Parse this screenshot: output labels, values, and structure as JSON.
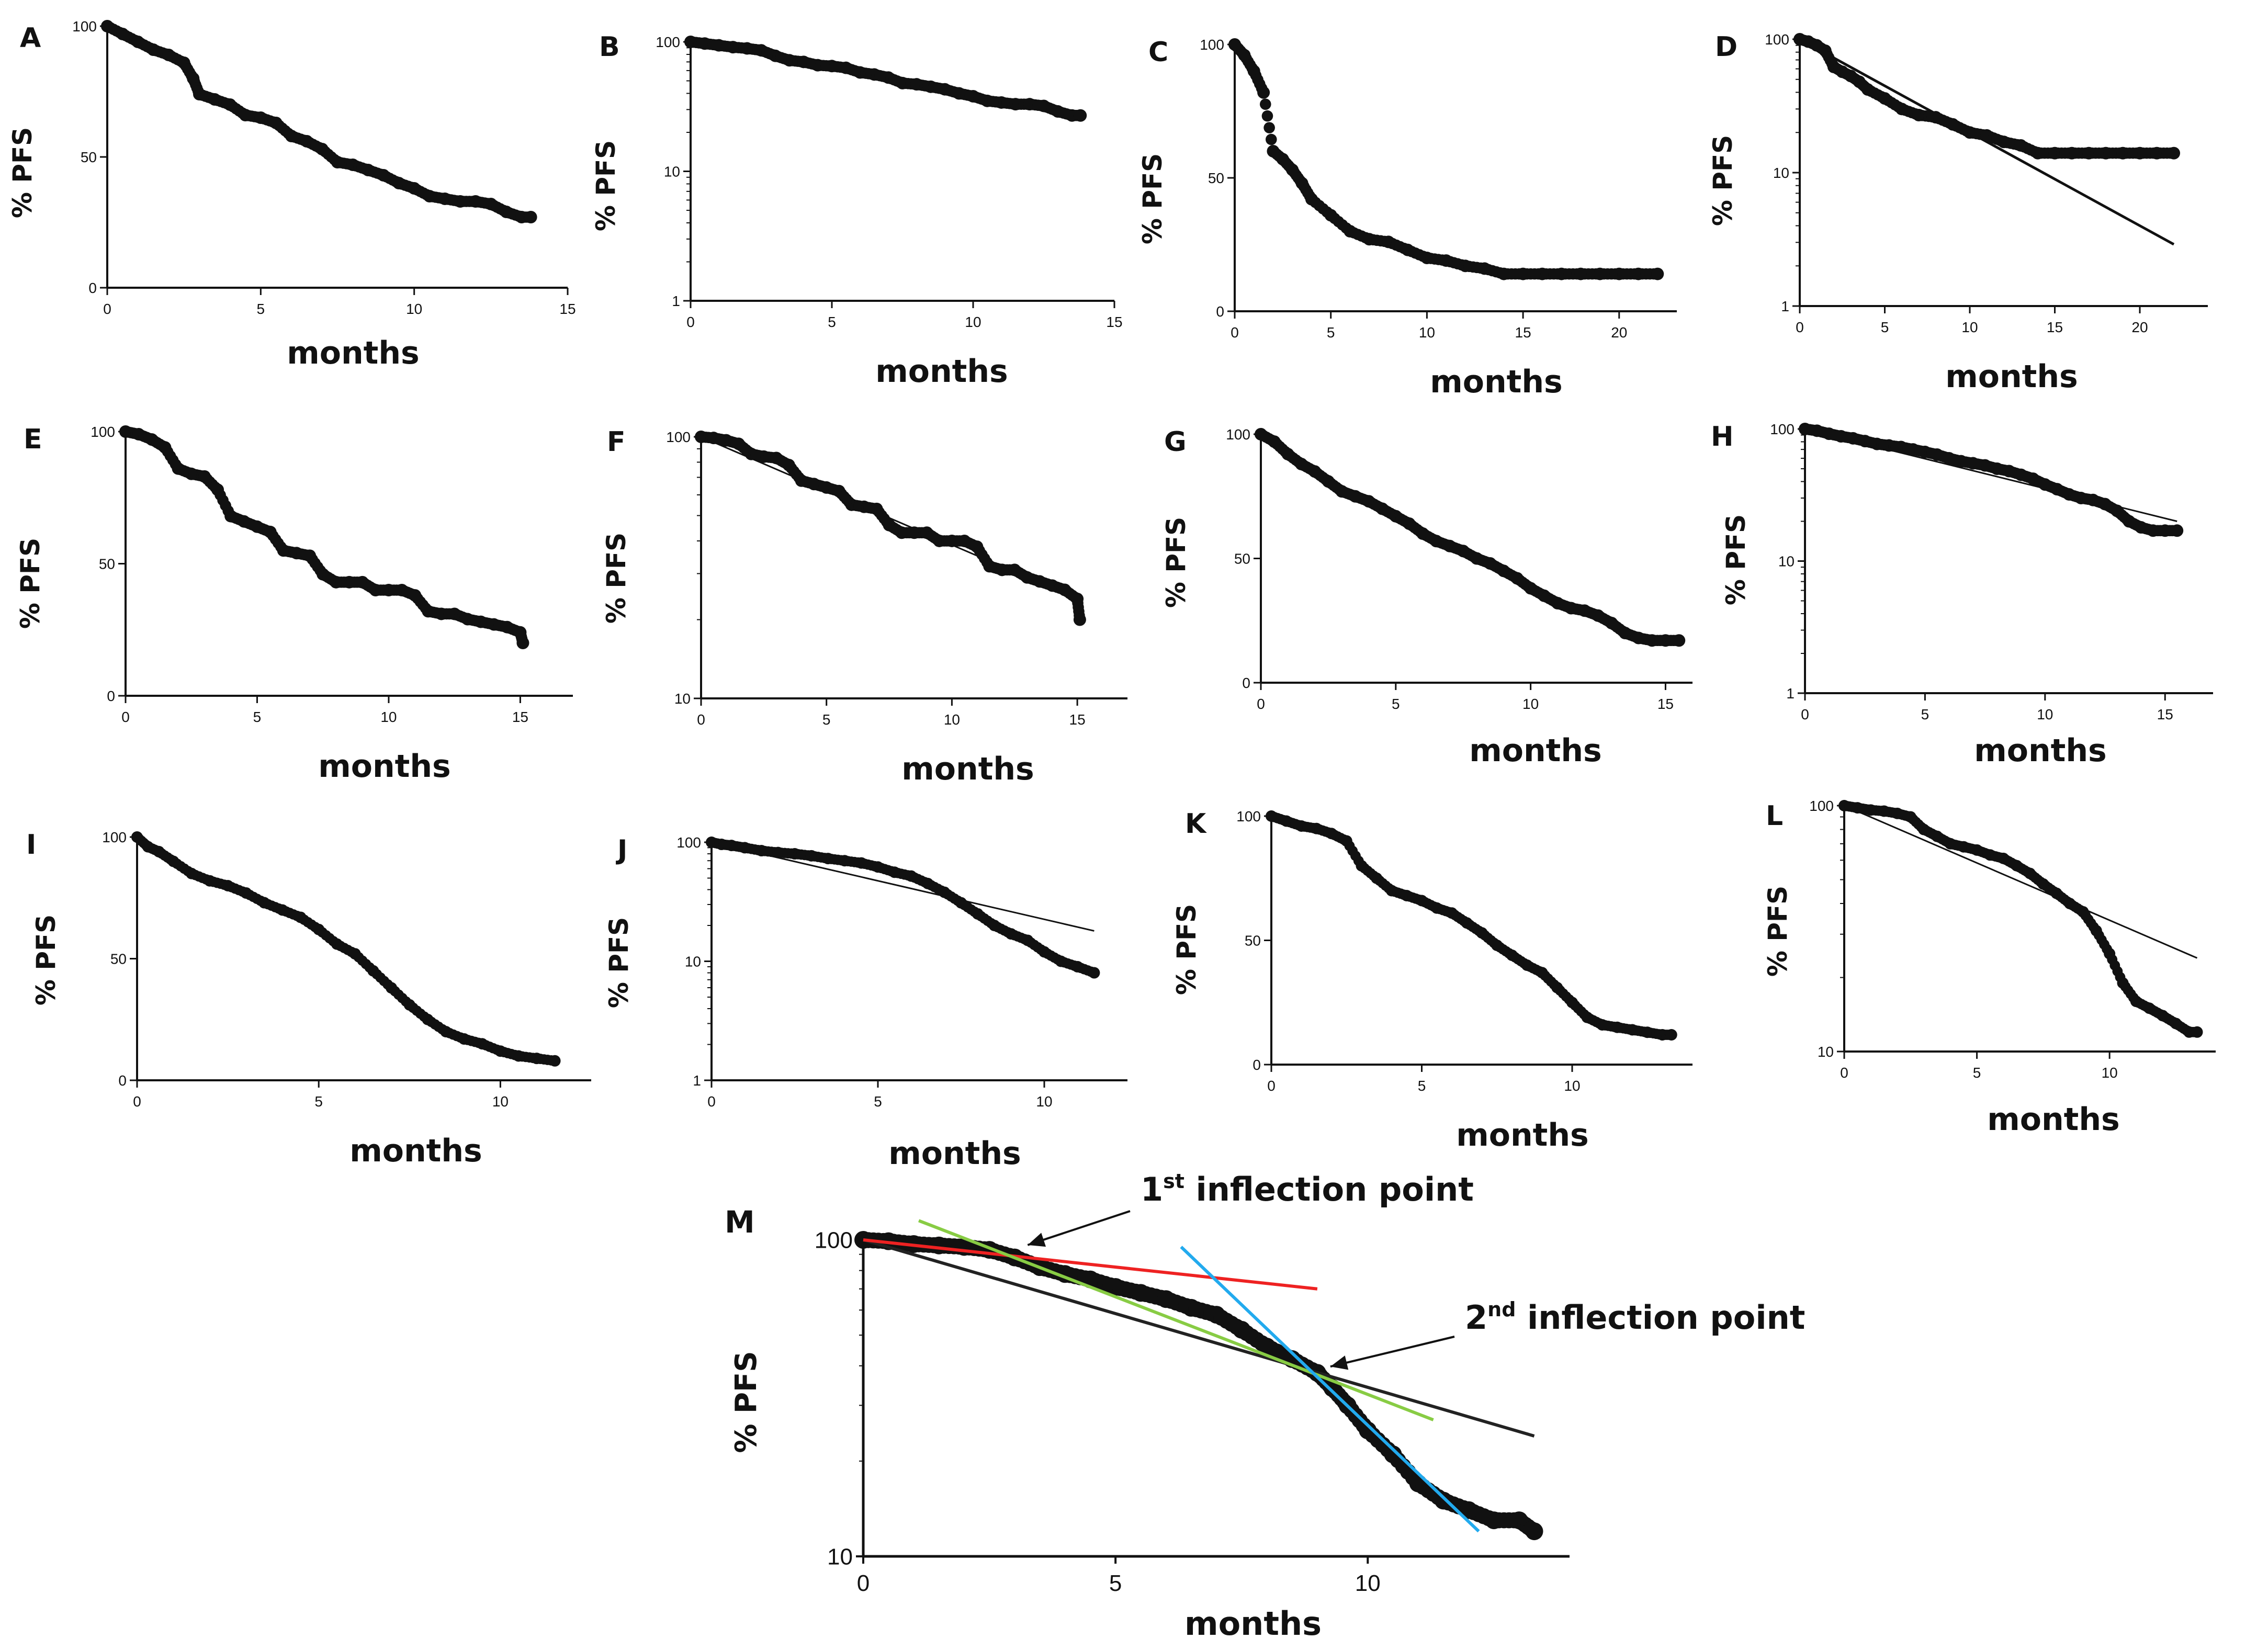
{
  "figure": {
    "panels_note": "Kaplan-Meier progression-free survival curves, linear and semi-log views"
  },
  "chart_data": [
    {
      "panel": "A",
      "type": "scatter",
      "scale": "linear",
      "ylabel": "% PFS",
      "xlabel": "months",
      "xlim": [
        0,
        15
      ],
      "xticks": [
        "0",
        "5",
        "10",
        "15"
      ],
      "ylim": [
        0,
        100
      ],
      "yticks": [
        "0",
        "50",
        "100"
      ],
      "x": [
        0,
        0.5,
        1,
        1.5,
        2,
        2.5,
        2.8,
        3,
        3.5,
        4,
        4.5,
        5,
        5.5,
        6,
        6.5,
        7,
        7.5,
        8,
        8.5,
        9,
        9.5,
        10,
        10.5,
        11,
        11.5,
        12,
        12.5,
        13,
        13.5,
        13.8
      ],
      "y": [
        100,
        97,
        94,
        91,
        89,
        86,
        80,
        74,
        72,
        70,
        66,
        65,
        63,
        58,
        56,
        53,
        48,
        47,
        45,
        43,
        40,
        38,
        35,
        34,
        33,
        33,
        32,
        29,
        27,
        27
      ]
    },
    {
      "panel": "B",
      "type": "scatter",
      "scale": "log",
      "ylabel": "% PFS",
      "xlabel": "months",
      "xlim": [
        0,
        15
      ],
      "xticks": [
        "0",
        "5",
        "10",
        "15"
      ],
      "ylim": [
        1,
        100
      ],
      "yticks": [
        "1",
        "10",
        "100"
      ],
      "x": [
        0,
        0.5,
        1,
        1.5,
        2,
        2.5,
        3,
        3.5,
        4,
        4.5,
        5,
        5.5,
        6,
        6.5,
        7,
        7.5,
        8,
        8.5,
        9,
        9.5,
        10,
        10.5,
        11,
        11.5,
        12,
        12.5,
        13,
        13.5,
        13.8
      ],
      "y": [
        100,
        97,
        94,
        91,
        89,
        86,
        78,
        72,
        70,
        66,
        65,
        63,
        58,
        56,
        53,
        48,
        47,
        45,
        43,
        40,
        38,
        35,
        34,
        33,
        33,
        32,
        29,
        27,
        27
      ]
    },
    {
      "panel": "C",
      "type": "scatter",
      "scale": "linear",
      "ylabel": "% PFS",
      "xlabel": "months",
      "xlim": [
        0,
        23
      ],
      "xticks": [
        "0",
        "5",
        "10",
        "15",
        "20"
      ],
      "ylim": [
        0,
        100
      ],
      "yticks": [
        "0",
        "50",
        "100"
      ],
      "x": [
        0,
        0.5,
        1,
        1.5,
        2,
        2.5,
        3,
        3.5,
        4,
        5,
        6,
        7,
        8,
        9,
        10,
        11,
        12,
        13,
        14,
        15,
        16,
        17,
        18,
        19,
        20,
        21,
        22
      ],
      "y": [
        100,
        96,
        90,
        82,
        60,
        57,
        53,
        48,
        42,
        36,
        30,
        27,
        26,
        23,
        20,
        19,
        17,
        16,
        14,
        14,
        14,
        14,
        14,
        14,
        14,
        14,
        14
      ]
    },
    {
      "panel": "D",
      "type": "scatter",
      "scale": "log",
      "ylabel": "% PFS",
      "xlabel": "months",
      "xlim": [
        0,
        24
      ],
      "xticks": [
        "0",
        "5",
        "10",
        "15",
        "20"
      ],
      "ylim": [
        1,
        100
      ],
      "yticks": [
        "1",
        "10",
        "100"
      ],
      "x": [
        0,
        0.5,
        1,
        1.5,
        2,
        2.5,
        3,
        3.5,
        4,
        5,
        6,
        7,
        8,
        9,
        10,
        11,
        12,
        13,
        14,
        15,
        16,
        17,
        18,
        19,
        20,
        21,
        22
      ],
      "y": [
        100,
        96,
        90,
        82,
        62,
        57,
        53,
        48,
        42,
        36,
        30,
        27,
        26,
        23,
        20,
        19,
        17,
        16,
        14,
        14,
        14,
        14,
        14,
        14,
        14,
        14,
        14
      ],
      "fit": {
        "x": [
          0,
          22
        ],
        "y": [
          100,
          2.9
        ]
      }
    },
    {
      "panel": "E",
      "type": "scatter",
      "scale": "linear",
      "ylabel": "% PFS",
      "xlabel": "months",
      "xlim": [
        0,
        17
      ],
      "xticks": [
        "0",
        "5",
        "10",
        "15"
      ],
      "ylim": [
        0,
        100
      ],
      "yticks": [
        "0",
        "50",
        "100"
      ],
      "x": [
        0,
        0.5,
        1,
        1.5,
        2,
        2.5,
        3,
        3.5,
        4,
        4.5,
        5,
        5.5,
        6,
        6.5,
        7,
        7.5,
        8,
        8.5,
        9,
        9.5,
        10,
        10.5,
        11,
        11.5,
        12,
        12.5,
        13,
        13.5,
        14,
        14.5,
        15,
        15.1
      ],
      "y": [
        100,
        99,
        97,
        94,
        86,
        84,
        83,
        78,
        68,
        66,
        64,
        62,
        55,
        54,
        53,
        46,
        43,
        43,
        43,
        40,
        40,
        40,
        38,
        32,
        31,
        31,
        29,
        28,
        27,
        26,
        24,
        20
      ]
    },
    {
      "panel": "F",
      "type": "scatter",
      "scale": "log",
      "ylabel": "% PFS",
      "xlabel": "months",
      "xlim": [
        0,
        17
      ],
      "xticks": [
        "0",
        "5",
        "10",
        "15"
      ],
      "ylim": [
        10,
        100
      ],
      "yticks": [
        "10",
        "100"
      ],
      "x": [
        0,
        0.5,
        1,
        1.5,
        2,
        2.5,
        3,
        3.5,
        4,
        4.5,
        5,
        5.5,
        6,
        6.5,
        7,
        7.5,
        8,
        8.5,
        9,
        9.5,
        10,
        10.5,
        11,
        11.5,
        12,
        12.5,
        13,
        13.5,
        14,
        14.5,
        15,
        15.1
      ],
      "y": [
        100,
        99,
        97,
        94,
        86,
        84,
        83,
        78,
        68,
        66,
        64,
        62,
        55,
        54,
        53,
        46,
        43,
        43,
        43,
        40,
        40,
        40,
        38,
        32,
        31,
        31,
        29,
        28,
        27,
        26,
        24,
        20
      ],
      "fit": {
        "x": [
          0,
          15
        ],
        "y": [
          100,
          24
        ]
      }
    },
    {
      "panel": "G",
      "type": "scatter",
      "scale": "linear",
      "ylabel": "% PFS",
      "xlabel": "months",
      "xlim": [
        0,
        16
      ],
      "xticks": [
        "0",
        "5",
        "10",
        "15"
      ],
      "ylim": [
        0,
        100
      ],
      "yticks": [
        "0",
        "50",
        "100"
      ],
      "x": [
        0,
        0.5,
        1,
        1.5,
        2,
        2.5,
        3,
        3.5,
        4,
        4.5,
        5,
        5.5,
        6,
        6.5,
        7,
        7.5,
        8,
        8.5,
        9,
        9.5,
        10,
        10.5,
        11,
        11.5,
        12,
        12.5,
        13,
        13.5,
        14,
        14.5,
        15,
        15.5
      ],
      "y": [
        100,
        97,
        92,
        88,
        85,
        81,
        77,
        75,
        73,
        70,
        67,
        64,
        60,
        57,
        55,
        53,
        50,
        48,
        45,
        42,
        38,
        35,
        32,
        30,
        29,
        27,
        24,
        20,
        18,
        17,
        17,
        17
      ]
    },
    {
      "panel": "H",
      "type": "scatter",
      "scale": "log",
      "ylabel": "% PFS",
      "xlabel": "months",
      "xlim": [
        0,
        17
      ],
      "xticks": [
        "0",
        "5",
        "10",
        "15"
      ],
      "ylim": [
        1,
        100
      ],
      "yticks": [
        "1",
        "10",
        "100"
      ],
      "x": [
        0,
        0.5,
        1,
        1.5,
        2,
        2.5,
        3,
        3.5,
        4,
        4.5,
        5,
        5.5,
        6,
        6.5,
        7,
        7.5,
        8,
        8.5,
        9,
        9.5,
        10,
        10.5,
        11,
        11.5,
        12,
        12.5,
        13,
        13.5,
        14,
        14.5,
        15,
        15.5
      ],
      "y": [
        100,
        97,
        92,
        88,
        85,
        81,
        77,
        75,
        73,
        70,
        67,
        64,
        60,
        57,
        55,
        53,
        50,
        48,
        45,
        42,
        38,
        35,
        32,
        30,
        29,
        27,
        24,
        20,
        18,
        17,
        17,
        17
      ],
      "fit": {
        "x": [
          0,
          15.5
        ],
        "y": [
          100,
          20
        ]
      }
    },
    {
      "panel": "I",
      "type": "scatter",
      "scale": "linear",
      "ylabel": "% PFS",
      "xlabel": "months",
      "xlim": [
        0,
        12.5
      ],
      "xticks": [
        "0",
        "5",
        "10"
      ],
      "ylim": [
        0,
        100
      ],
      "yticks": [
        "0",
        "50",
        "100"
      ],
      "x": [
        0,
        0.3,
        0.6,
        1,
        1.5,
        2,
        2.5,
        3,
        3.5,
        4,
        4.5,
        5,
        5.5,
        6,
        6.5,
        7,
        7.5,
        8,
        8.5,
        9,
        9.5,
        10,
        10.5,
        11,
        11.5
      ],
      "y": [
        100,
        96,
        94,
        90,
        85,
        82,
        80,
        77,
        73,
        70,
        67,
        62,
        56,
        52,
        45,
        38,
        31,
        25,
        20,
        17,
        15,
        12,
        10,
        9,
        8
      ]
    },
    {
      "panel": "J",
      "type": "scatter",
      "scale": "log",
      "ylabel": "% PFS",
      "xlabel": "months",
      "xlim": [
        0,
        12.5
      ],
      "xticks": [
        "0",
        "5",
        "10"
      ],
      "ylim": [
        1,
        100
      ],
      "yticks": [
        "1",
        "10",
        "100"
      ],
      "x": [
        0,
        0.3,
        0.6,
        1,
        1.5,
        2,
        2.5,
        3,
        3.5,
        4,
        4.5,
        5,
        5.5,
        6,
        6.5,
        7,
        7.5,
        8,
        8.5,
        9,
        9.5,
        10,
        10.5,
        11,
        11.5
      ],
      "y": [
        100,
        96,
        94,
        90,
        85,
        82,
        80,
        77,
        73,
        70,
        67,
        62,
        56,
        52,
        45,
        38,
        31,
        25,
        20,
        17,
        15,
        12,
        10,
        9,
        8
      ],
      "fit": {
        "x": [
          0,
          11.5
        ],
        "y": [
          100,
          18
        ]
      }
    },
    {
      "panel": "K",
      "type": "scatter",
      "scale": "linear",
      "ylabel": "% PFS",
      "xlabel": "months",
      "xlim": [
        0,
        14
      ],
      "xticks": [
        "0",
        "5",
        "10"
      ],
      "ylim": [
        0,
        100
      ],
      "yticks": [
        "0",
        "50",
        "100"
      ],
      "x": [
        0,
        0.5,
        1,
        1.5,
        2,
        2.5,
        3,
        3.5,
        4,
        4.5,
        5,
        5.5,
        6,
        6.5,
        7,
        7.5,
        8,
        8.5,
        9,
        9.5,
        10,
        10.5,
        11,
        11.5,
        12,
        12.5,
        13,
        13.3
      ],
      "y": [
        100,
        98,
        96,
        95,
        93,
        90,
        80,
        75,
        70,
        68,
        66,
        63,
        61,
        57,
        53,
        48,
        44,
        40,
        37,
        31,
        25,
        19,
        16,
        15,
        14,
        13,
        12,
        12
      ]
    },
    {
      "panel": "L",
      "type": "scatter",
      "scale": "log",
      "ylabel": "% PFS",
      "xlabel": "months",
      "xlim": [
        0,
        14
      ],
      "xticks": [
        "0",
        "5",
        "10"
      ],
      "ylim": [
        10,
        100
      ],
      "yticks": [
        "10",
        "100"
      ],
      "x": [
        0,
        0.5,
        1,
        1.5,
        2,
        2.5,
        3,
        3.5,
        4,
        4.5,
        5,
        5.5,
        6,
        6.5,
        7,
        7.5,
        8,
        8.5,
        9,
        9.5,
        10,
        10.5,
        11,
        11.5,
        12,
        12.5,
        13,
        13.3
      ],
      "y": [
        100,
        98,
        96,
        95,
        93,
        90,
        80,
        75,
        70,
        68,
        66,
        63,
        61,
        57,
        53,
        48,
        44,
        40,
        37,
        31,
        25,
        19,
        16,
        15,
        14,
        13,
        12,
        12
      ],
      "fit": {
        "x": [
          0,
          13.3
        ],
        "y": [
          100,
          24
        ]
      }
    },
    {
      "panel": "M",
      "type": "scatter",
      "scale": "log",
      "ylabel": "% PFS",
      "xlabel": "months",
      "xlim": [
        0,
        14
      ],
      "xticks": [
        "0",
        "5",
        "10"
      ],
      "ylim": [
        10,
        100
      ],
      "yticks": [
        "10",
        "100"
      ],
      "x": [
        0,
        0.5,
        1,
        1.5,
        2,
        2.5,
        3,
        3.5,
        4,
        4.5,
        5,
        5.5,
        6,
        6.5,
        7,
        7.5,
        8,
        8.5,
        9,
        9.3,
        9.6,
        10,
        10.5,
        11,
        11.5,
        12,
        12.5,
        13,
        13.3
      ],
      "y": [
        100,
        99,
        97,
        96,
        95,
        93,
        88,
        82,
        78,
        75,
        71,
        68,
        65,
        61,
        58,
        52,
        46,
        42,
        38,
        34,
        30,
        25,
        21,
        17,
        15,
        14,
        13,
        13,
        12
      ],
      "fits": [
        {
          "name": "overall",
          "color": "#222222",
          "x": [
            0,
            13.3
          ],
          "y": [
            100,
            24
          ]
        },
        {
          "name": "phase-1",
          "color": "#ee2222",
          "x": [
            0,
            9
          ],
          "y": [
            100,
            70
          ]
        },
        {
          "name": "phase-2",
          "color": "#88cc44",
          "x": [
            1.1,
            11.3
          ],
          "y": [
            115,
            27
          ]
        },
        {
          "name": "phase-3",
          "color": "#22aaee",
          "x": [
            6.3,
            12.2
          ],
          "y": [
            95,
            12
          ]
        }
      ],
      "annotations": [
        {
          "text_main": "1",
          "text_sup": "st",
          "text_rest": " inflection point",
          "points_to": {
            "x": 3,
            "y": 92
          }
        },
        {
          "text_main": "2",
          "text_sup": "nd",
          "text_rest": " inflection point",
          "points_to": {
            "x": 9,
            "y": 38
          }
        }
      ]
    }
  ]
}
